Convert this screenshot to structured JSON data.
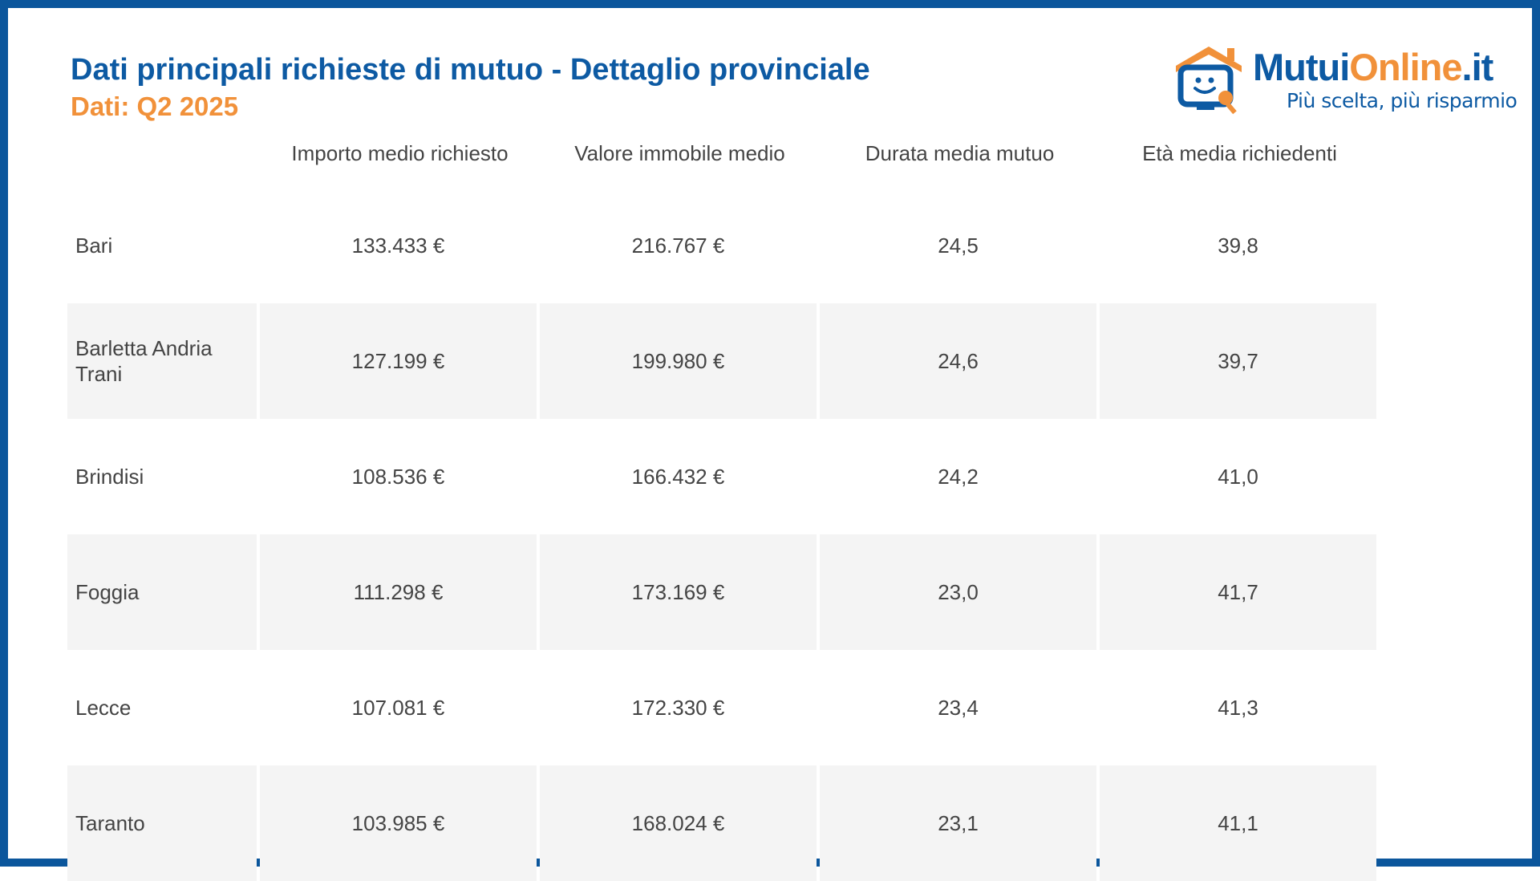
{
  "header": {
    "title": "Dati principali richieste di mutuo - Dettaglio provinciale",
    "subtitle": "Dati: Q2 2025"
  },
  "logo": {
    "brand_part1": "Mutui",
    "brand_part2": "Online",
    "brand_part3": ".it",
    "tagline": "Più scelta, più risparmio",
    "icon": "house-monitor-smiley-icon",
    "colors": {
      "blue": "#0d5aa3",
      "orange": "#f1913a"
    }
  },
  "table": {
    "columns": [
      "",
      "Importo medio richiesto",
      "Valore immobile medio",
      "Durata media mutuo",
      "Età media richiedenti"
    ],
    "rows": [
      {
        "provincia": "Bari",
        "importo": "133.433 €",
        "valore": "216.767 €",
        "durata": "24,5",
        "eta": "39,8"
      },
      {
        "provincia": "Barletta Andria Trani",
        "importo": "127.199 €",
        "valore": "199.980 €",
        "durata": "24,6",
        "eta": "39,7"
      },
      {
        "provincia": "Brindisi",
        "importo": "108.536 €",
        "valore": "166.432 €",
        "durata": "24,2",
        "eta": "41,0"
      },
      {
        "provincia": "Foggia",
        "importo": "111.298 €",
        "valore": "173.169 €",
        "durata": "23,0",
        "eta": "41,7"
      },
      {
        "provincia": "Lecce",
        "importo": "107.081 €",
        "valore": "172.330 €",
        "durata": "23,4",
        "eta": "41,3"
      },
      {
        "provincia": "Taranto",
        "importo": "103.985 €",
        "valore": "168.024 €",
        "durata": "23,1",
        "eta": "41,1"
      }
    ],
    "colors": {
      "border": "#0b569c",
      "shade": "#f4f4f4",
      "text": "#444444"
    }
  }
}
